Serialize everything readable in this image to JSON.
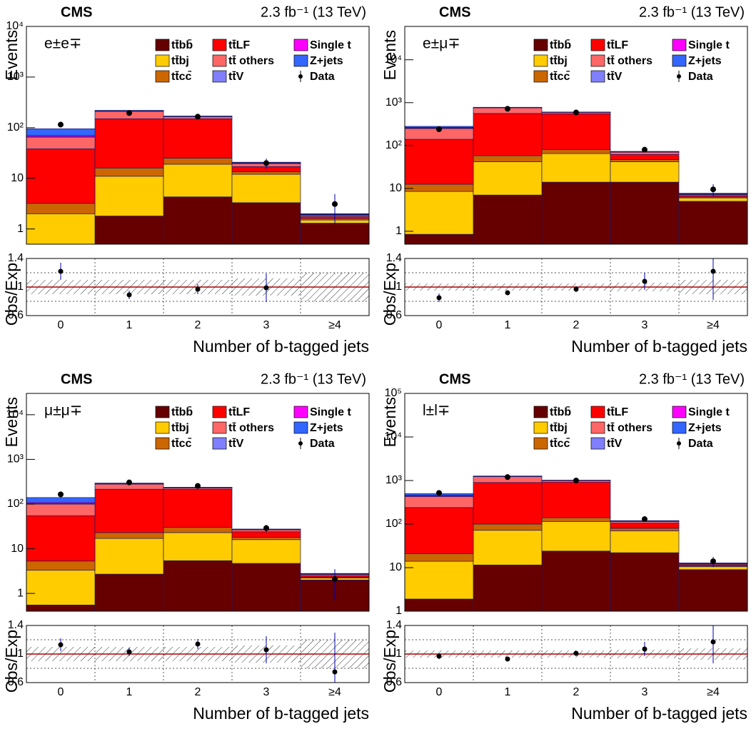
{
  "chart_data": [
    {
      "type": "bar",
      "stacked": true,
      "log_scale": true,
      "header": "CMS",
      "lumi": "2.3 fb⁻¹ (13 TeV)",
      "channel": "e±e∓",
      "ylabel": "Events",
      "xlabel": "Number of b-tagged jets",
      "categories": [
        "0",
        "1",
        "2",
        "3",
        "≥4"
      ],
      "ylim": [
        0.5,
        10000
      ],
      "yticks": [
        1,
        10,
        {
          "value": 100,
          "label": "10²"
        },
        {
          "value": 1000,
          "label": "10³"
        },
        {
          "value": 10000,
          "label": "10⁴"
        }
      ],
      "series": [
        {
          "name": "tt̄bb̄",
          "color": "#660000",
          "values": [
            0.3,
            1.8,
            4.3,
            3.3,
            1.3
          ]
        },
        {
          "name": "tt̄bj",
          "color": "#ffcc00",
          "values": [
            1.7,
            9.2,
            14.7,
            8.7,
            0.2
          ]
        },
        {
          "name": "tt̄cc̄",
          "color": "#cc6600",
          "values": [
            1.2,
            5,
            6,
            1.5,
            0.1
          ]
        },
        {
          "name": "tt̄LF",
          "color": "#ff0000",
          "values": [
            35,
            134,
            125,
            3.5,
            0.15
          ]
        },
        {
          "name": "tt̄ others",
          "color": "#ff6666",
          "values": [
            27,
            60,
            15,
            2.5,
            0.1
          ]
        },
        {
          "name": "tt̄V",
          "color": "#8080ff",
          "values": [
            1,
            2,
            2,
            0.5,
            0.05
          ]
        },
        {
          "name": "Single t",
          "color": "#ff00ff",
          "values": [
            4,
            2,
            1,
            0.3,
            0.05
          ]
        },
        {
          "name": "Z+jets",
          "color": "#3366ff",
          "values": [
            25,
            6,
            2,
            0.5,
            0.05
          ]
        }
      ],
      "data": {
        "name": "Data",
        "values": [
          115,
          195,
          165,
          20,
          3.1
        ],
        "errors": [
          11,
          14,
          13,
          4.5,
          1.8
        ]
      },
      "ratio": {
        "type": "scatter",
        "ylabel": "Obs/Exp",
        "ylim": [
          0.6,
          1.4
        ],
        "yticks": [
          0.6,
          1,
          1.4
        ],
        "ygrid": [
          0.8,
          1.2
        ],
        "values": [
          1.22,
          0.89,
          0.97,
          0.99,
          null
        ],
        "errors": [
          0.12,
          0.06,
          0.07,
          0.2,
          null
        ],
        "band": [
          0.1,
          0.1,
          0.1,
          0.12,
          0.2
        ]
      }
    },
    {
      "type": "bar",
      "stacked": true,
      "log_scale": true,
      "header": "CMS",
      "lumi": "2.3 fb⁻¹ (13 TeV)",
      "channel": "e±μ∓",
      "ylabel": "Events",
      "xlabel": "Number of b-tagged jets",
      "categories": [
        "0",
        "1",
        "2",
        "3",
        "≥4"
      ],
      "ylim": [
        0.5,
        60000
      ],
      "yticks": [
        1,
        10,
        {
          "value": 100,
          "label": "10²"
        },
        {
          "value": 1000,
          "label": "10³"
        },
        {
          "value": 10000,
          "label": "10⁴"
        }
      ],
      "series": [
        {
          "name": "tt̄bb̄",
          "color": "#660000",
          "values": [
            0.85,
            7,
            14,
            14,
            5
          ]
        },
        {
          "name": "tt̄bj",
          "color": "#ffcc00",
          "values": [
            7.65,
            35,
            51,
            28,
            1
          ]
        },
        {
          "name": "tt̄cc̄",
          "color": "#cc6600",
          "values": [
            4,
            16,
            15,
            5,
            0.3
          ]
        },
        {
          "name": "tt̄LF",
          "color": "#ff0000",
          "values": [
            127.5,
            502,
            470,
            15,
            0.5
          ]
        },
        {
          "name": "tt̄ others",
          "color": "#ff6666",
          "values": [
            110,
            200,
            40,
            8,
            0.4
          ]
        },
        {
          "name": "tt̄V",
          "color": "#8080ff",
          "values": [
            5,
            5,
            5,
            1,
            0.1
          ]
        },
        {
          "name": "Single t",
          "color": "#ff00ff",
          "values": [
            10,
            10,
            5,
            1,
            0.2
          ]
        },
        {
          "name": "Z+jets",
          "color": "#3366ff",
          "values": [
            15,
            5,
            5,
            1,
            0.2
          ]
        }
      ],
      "data": {
        "name": "Data",
        "values": [
          240,
          720,
          590,
          80,
          9.5
        ],
        "errors": [
          16,
          27,
          24,
          9,
          3
        ]
      },
      "ratio": {
        "type": "scatter",
        "ylabel": "Obs/Exp",
        "ylim": [
          0.6,
          1.4
        ],
        "yticks": [
          0.6,
          1,
          1.4
        ],
        "ygrid": [
          0.8,
          1.2
        ],
        "values": [
          0.85,
          0.92,
          0.97,
          1.08,
          1.22
        ],
        "errors": [
          0.06,
          0.03,
          0.04,
          0.12,
          0.4
        ],
        "band": [
          0.05,
          0.05,
          0.05,
          0.06,
          0.1
        ]
      }
    },
    {
      "type": "bar",
      "stacked": true,
      "log_scale": true,
      "header": "CMS",
      "lumi": "2.3 fb⁻¹ (13 TeV)",
      "channel": "μ±μ∓",
      "ylabel": "Events",
      "xlabel": "Number of b-tagged jets",
      "categories": [
        "0",
        "1",
        "2",
        "3",
        "≥4"
      ],
      "ylim": [
        0.4,
        30000
      ],
      "yticks": [
        1,
        10,
        {
          "value": 100,
          "label": "10²"
        },
        {
          "value": 1000,
          "label": "10³"
        },
        {
          "value": 10000,
          "label": "10⁴"
        }
      ],
      "series": [
        {
          "name": "tt̄bb̄",
          "color": "#660000",
          "values": [
            0.55,
            2.7,
            5.4,
            4.7,
            2
          ]
        },
        {
          "name": "tt̄bj",
          "color": "#ffcc00",
          "values": [
            2.75,
            14.3,
            17.6,
            11.3,
            0.2
          ]
        },
        {
          "name": "tt̄cc̄",
          "color": "#cc6600",
          "values": [
            2,
            6,
            7,
            2,
            0.1
          ]
        },
        {
          "name": "tt̄LF",
          "color": "#ff0000",
          "values": [
            49.7,
            192,
            185,
            6,
            0.2
          ]
        },
        {
          "name": "tt̄ others",
          "color": "#ff6666",
          "values": [
            45,
            65,
            15,
            2.5,
            0.15
          ]
        },
        {
          "name": "tt̄V",
          "color": "#8080ff",
          "values": [
            2,
            3,
            3,
            0.5,
            0.05
          ]
        },
        {
          "name": "Single t",
          "color": "#ff00ff",
          "values": [
            6,
            4,
            2,
            0.3,
            0.05
          ]
        },
        {
          "name": "Z+jets",
          "color": "#3366ff",
          "values": [
            32,
            8,
            3,
            0.3,
            0.05
          ]
        }
      ],
      "data": {
        "name": "Data",
        "values": [
          165,
          305,
          255,
          29,
          2.1
        ],
        "errors": [
          13,
          17,
          16,
          5.4,
          1.4
        ]
      },
      "ratio": {
        "type": "scatter",
        "ylabel": "Obs/Exp",
        "ylim": [
          0.6,
          1.4
        ],
        "yticks": [
          0.6,
          1,
          1.4
        ],
        "ygrid": [
          0.8,
          1.2
        ],
        "values": [
          1.13,
          1.03,
          1.14,
          1.06,
          0.75
        ],
        "errors": [
          0.09,
          0.06,
          0.07,
          0.19,
          0.55
        ],
        "band": [
          0.1,
          0.1,
          0.1,
          0.12,
          0.2
        ]
      }
    },
    {
      "type": "bar",
      "stacked": true,
      "log_scale": true,
      "header": "CMS",
      "lumi": "2.3 fb⁻¹ (13 TeV)",
      "channel": "l±l∓",
      "ylabel": "Events",
      "xlabel": "Number of b-tagged jets",
      "categories": [
        "0",
        "1",
        "2",
        "3",
        "≥4"
      ],
      "ylim": [
        1,
        100000
      ],
      "yticks": [
        1,
        10,
        {
          "value": 100,
          "label": "10²"
        },
        {
          "value": 1000,
          "label": "10³"
        },
        {
          "value": 10000,
          "label": "10⁴"
        },
        {
          "value": 100000,
          "label": "10⁵"
        }
      ],
      "series": [
        {
          "name": "tt̄bb̄",
          "color": "#660000",
          "values": [
            1.9,
            11.5,
            24,
            22,
            9
          ]
        },
        {
          "name": "tt̄bj",
          "color": "#ffcc00",
          "values": [
            12.1,
            60.5,
            91,
            48,
            1.5
          ]
        },
        {
          "name": "tt̄cc̄",
          "color": "#cc6600",
          "values": [
            7,
            28,
            25,
            10,
            0.5
          ]
        },
        {
          "name": "tt̄LF",
          "color": "#ff0000",
          "values": [
            219,
            800,
            780,
            25,
            0.7
          ]
        },
        {
          "name": "tt̄ others",
          "color": "#ff6666",
          "values": [
            190,
            330,
            80,
            10,
            0.5
          ]
        },
        {
          "name": "tt̄V",
          "color": "#8080ff",
          "values": [
            10,
            10,
            10,
            2,
            0.2
          ]
        },
        {
          "name": "Single t",
          "color": "#ff00ff",
          "values": [
            20,
            15,
            5,
            1,
            0.2
          ]
        },
        {
          "name": "Z+jets",
          "color": "#3366ff",
          "values": [
            40,
            15,
            5,
            2,
            0.2
          ]
        }
      ],
      "data": {
        "name": "Data",
        "values": [
          520,
          1200,
          1000,
          130,
          14
        ],
        "errors": [
          23,
          35,
          32,
          11,
          3.7
        ]
      },
      "ratio": {
        "type": "scatter",
        "ylabel": "Obs/Exp",
        "ylim": [
          0.6,
          1.4
        ],
        "yticks": [
          0.6,
          1,
          1.4
        ],
        "ygrid": [
          0.8,
          1.2
        ],
        "values": [
          0.97,
          0.93,
          1.01,
          1.07,
          1.17
        ],
        "errors": [
          0.04,
          0.03,
          0.03,
          0.1,
          0.3
        ],
        "band": [
          0.05,
          0.05,
          0.05,
          0.06,
          0.08
        ]
      }
    }
  ]
}
